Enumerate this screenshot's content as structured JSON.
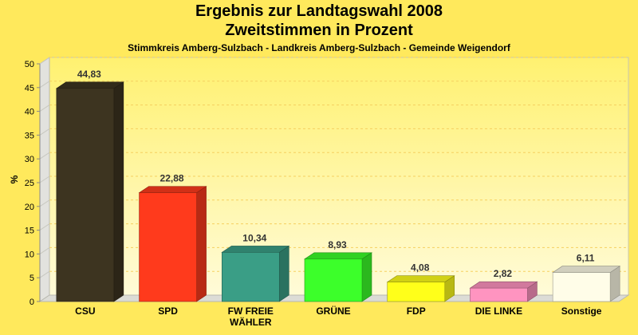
{
  "chart_data": {
    "type": "bar",
    "title": "Ergebnis zur Landtagswahl 2008",
    "title2": "Zweitstimmen in Prozent",
    "subtitle": "Stimmkreis Amberg-Sulzbach - Landkreis Amberg-Sulzbach - Gemeinde Weigendorf",
    "ylabel": "%",
    "ylim": [
      0,
      50
    ],
    "yticks": [
      "0",
      "5",
      "10",
      "15",
      "20",
      "25",
      "30",
      "35",
      "40",
      "45",
      "50"
    ],
    "grid": true,
    "categories": [
      {
        "label": [
          "CSU"
        ],
        "value": 44.83,
        "value_label": "44,83",
        "color": "#3d3420"
      },
      {
        "label": [
          "SPD"
        ],
        "value": 22.88,
        "value_label": "22,88",
        "color": "#ff3a1c"
      },
      {
        "label": [
          "FW FREIE",
          "WÄHLER"
        ],
        "value": 10.34,
        "value_label": "10,34",
        "color": "#3a9e86"
      },
      {
        "label": [
          "GRÜNE"
        ],
        "value": 8.93,
        "value_label": "8,93",
        "color": "#3cff2a"
      },
      {
        "label": [
          "FDP"
        ],
        "value": 4.08,
        "value_label": "4,08",
        "color": "#ffff1a"
      },
      {
        "label": [
          "DIE LINKE"
        ],
        "value": 2.82,
        "value_label": "2,82",
        "color": "#ff94c0"
      },
      {
        "label": [
          "Sonstige"
        ],
        "value": 6.11,
        "value_label": "6,11",
        "color": "#fffde8"
      }
    ]
  }
}
